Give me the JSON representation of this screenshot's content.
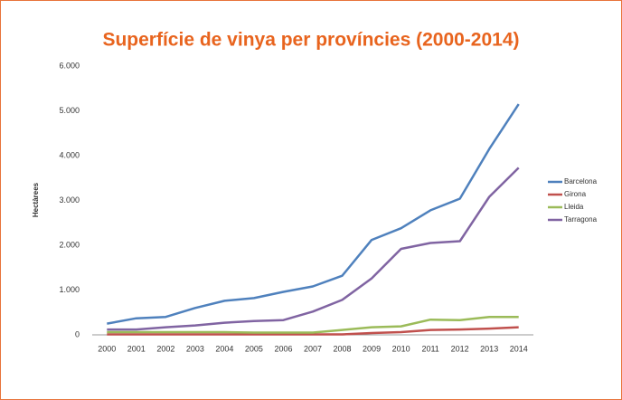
{
  "chart_data": {
    "type": "line",
    "title": "Superfície de vinya per províncies (2000-2014)",
    "y_label": "Hectàrees",
    "categories": [
      "2000",
      "2001",
      "2002",
      "2003",
      "2004",
      "2005",
      "2006",
      "2007",
      "2008",
      "2009",
      "2010",
      "2011",
      "2012",
      "2013",
      "2014"
    ],
    "series": [
      {
        "name": "Barcelona",
        "color": "#4f81bd",
        "values": [
          250,
          370,
          400,
          600,
          760,
          820,
          960,
          1080,
          1320,
          2120,
          2380,
          2780,
          3040,
          4150,
          5150
        ]
      },
      {
        "name": "Girona",
        "color": "#c0504d",
        "values": [
          10,
          10,
          10,
          10,
          10,
          10,
          10,
          10,
          10,
          40,
          60,
          110,
          120,
          140,
          170
        ]
      },
      {
        "name": "Lleida",
        "color": "#9bbb59",
        "values": [
          60,
          60,
          60,
          60,
          60,
          50,
          50,
          50,
          110,
          170,
          190,
          340,
          330,
          400,
          400
        ]
      },
      {
        "name": "Tarragona",
        "color": "#8064a2",
        "values": [
          120,
          120,
          170,
          210,
          270,
          310,
          330,
          520,
          780,
          1260,
          1920,
          2050,
          2090,
          3080,
          3730
        ]
      }
    ],
    "ylim": [
      0,
      6000
    ],
    "yticks": [
      0,
      {
        "value": 1000,
        "label": "1.000"
      },
      {
        "value": 2000,
        "label": "2.000"
      },
      {
        "value": 3000,
        "label": "3.000"
      },
      {
        "value": 4000,
        "label": "4.000"
      },
      {
        "value": 5000,
        "label": "5.000"
      },
      {
        "value": 6000,
        "label": "6.000"
      }
    ],
    "grid": false,
    "legend": "right"
  }
}
